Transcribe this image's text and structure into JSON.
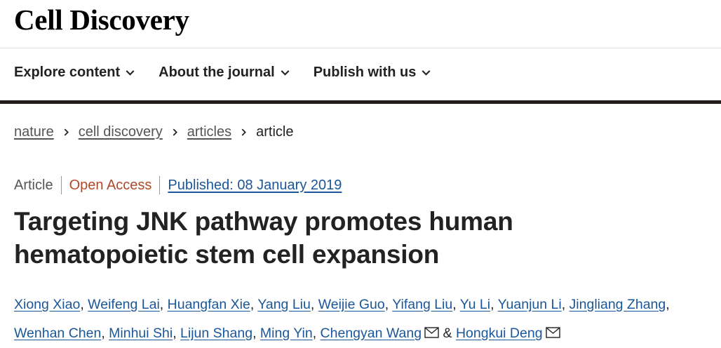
{
  "header": {
    "title": "Cell Discovery"
  },
  "nav": [
    "Explore content",
    "About the journal",
    "Publish with us"
  ],
  "breadcrumb": [
    "nature",
    "cell discovery",
    "articles",
    "article"
  ],
  "meta": {
    "type": "Article",
    "access": "Open Access",
    "published": "Published: 08 January 2019"
  },
  "article": {
    "title": "Targeting JNK pathway promotes human hematopoietic stem cell expansion",
    "author_separator": ",",
    "last_author_joiner": "&",
    "authors": [
      {
        "name": "Xiong Xiao",
        "corresponding": false
      },
      {
        "name": "Weifeng Lai",
        "corresponding": false
      },
      {
        "name": "Huangfan Xie",
        "corresponding": false
      },
      {
        "name": "Yang Liu",
        "corresponding": false
      },
      {
        "name": "Weijie Guo",
        "corresponding": false
      },
      {
        "name": "Yifang Liu",
        "corresponding": false
      },
      {
        "name": "Yu Li",
        "corresponding": false
      },
      {
        "name": "Yuanjun Li",
        "corresponding": false
      },
      {
        "name": "Jingliang Zhang",
        "corresponding": false
      },
      {
        "name": "Wenhan Chen",
        "corresponding": false
      },
      {
        "name": "Minhui Shi",
        "corresponding": false
      },
      {
        "name": "Lijun Shang",
        "corresponding": false
      },
      {
        "name": "Ming Yin",
        "corresponding": false
      },
      {
        "name": "Chengyan Wang",
        "corresponding": true
      },
      {
        "name": "Hongkui Deng",
        "corresponding": true
      }
    ]
  }
}
